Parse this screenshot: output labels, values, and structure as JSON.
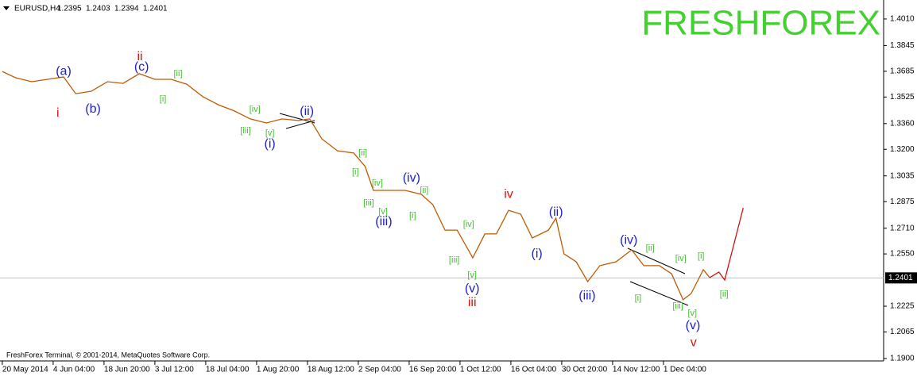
{
  "chart_data": {
    "type": "line",
    "symbol": "EURUSD,H4",
    "ohlc": [
      1.2395,
      1.2403,
      1.2394,
      1.2401
    ],
    "watermark": "FRESHFOREX",
    "copyright": "FreshForex Terminal, © 2001-2014, MetaQuotes Software Corp.",
    "last_price": 1.2401,
    "xlim": [
      -4,
      1525
    ],
    "ylim": [
      1.1885,
      1.4128
    ],
    "xticks": [
      {
        "value": 0,
        "label": "20 May 2014"
      },
      {
        "value": 88,
        "label": "4 Jun 04:00"
      },
      {
        "value": 176,
        "label": "18 Jun 20:00"
      },
      {
        "value": 264,
        "label": "3 Jul 12:00"
      },
      {
        "value": 352,
        "label": "18 Jul 04:00"
      },
      {
        "value": 440,
        "label": "1 Aug 20:00"
      },
      {
        "value": 528,
        "label": "18 Aug 12:00"
      },
      {
        "value": 616,
        "label": "2 Sep 04:00"
      },
      {
        "value": 704,
        "label": "16 Sep 20:00"
      },
      {
        "value": 792,
        "label": "1 Oct 12:00"
      },
      {
        "value": 880,
        "label": "16 Oct 04:00"
      },
      {
        "value": 968,
        "label": "30 Oct 20:00"
      },
      {
        "value": 1056,
        "label": "14 Nov 12:00"
      },
      {
        "value": 1144,
        "label": "1 Dec 04:00"
      }
    ],
    "yticks": [
      {
        "value": 1.401,
        "label": "1.4010"
      },
      1.3845,
      1.3685,
      1.3525,
      {
        "value": 1.336,
        "label": "1.3360"
      },
      {
        "value": 1.32,
        "label": "1.3200"
      },
      1.3035,
      1.2875,
      {
        "value": 1.271,
        "label": "1.2710"
      },
      {
        "value": 1.255,
        "label": "1.2550"
      },
      1.2225,
      1.2065,
      {
        "value": 1.19,
        "label": "1.1900"
      }
    ],
    "series": [
      {
        "color": "#c05a00",
        "x": [
          0,
          23,
          51,
          78,
          106,
          127,
          154,
          182,
          209,
          237,
          264,
          292,
          319,
          347,
          374,
          402,
          429,
          457,
          484,
          512,
          532,
          553,
          580,
          608,
          628,
          642,
          670,
          697,
          725,
          745,
          766,
          787,
          814,
          835,
          855,
          876,
          897,
          917,
          945,
          958,
          972,
          993,
          1013,
          1034,
          1062,
          1089,
          1110,
          1137,
          1158,
          1178,
          1192,
          1213,
          1224
        ],
        "values": [
          1.3684,
          1.3645,
          1.362,
          1.3635,
          1.365,
          1.3546,
          1.3561,
          1.362,
          1.361,
          1.367,
          1.3635,
          1.3635,
          1.3605,
          1.3527,
          1.3477,
          1.3438,
          1.3389,
          1.3364,
          1.3389,
          1.3379,
          1.3389,
          1.3265,
          1.3191,
          1.3177,
          1.3093,
          1.2945,
          1.2945,
          1.2945,
          1.292,
          1.2856,
          1.2698,
          1.2698,
          1.2526,
          1.2674,
          1.2674,
          1.2821,
          1.2797,
          1.2649,
          1.2698,
          1.2772,
          1.255,
          1.2501,
          1.2378,
          1.2477,
          1.2501,
          1.2575,
          1.2477,
          1.2477,
          1.2427,
          1.2265,
          1.2304,
          1.2452,
          1.2403
        ]
      },
      {
        "color": "#d01010",
        "x": [
          1224,
          1240,
          1250,
          1282
        ],
        "values": [
          1.2403,
          1.2437,
          1.2388,
          1.2836
        ]
      }
    ],
    "annotations": [
      {
        "text": "(a)",
        "x": 106,
        "y": 1.3684,
        "color": "#2020c8"
      },
      {
        "text": "(b)",
        "x": 157,
        "y": 1.3448,
        "color": "#2020c8"
      },
      {
        "text": "(c)",
        "x": 241,
        "y": 1.3709,
        "color": "#2020c8"
      },
      {
        "text": "ii",
        "x": 238,
        "y": 1.3773,
        "color": "#e01010"
      },
      {
        "text": "i",
        "x": 96,
        "y": 1.3423,
        "color": "#e01010"
      },
      {
        "text": "[i]",
        "x": 278,
        "y": 1.3512,
        "color": "#44c030"
      },
      {
        "text": "[ii]",
        "x": 304,
        "y": 1.367,
        "color": "#44c030"
      },
      {
        "text": "[iii]",
        "x": 421,
        "y": 1.3315,
        "color": "#44c030"
      },
      {
        "text": "[iv]",
        "x": 437,
        "y": 1.3448,
        "color": "#44c030"
      },
      {
        "text": "[v]",
        "x": 463,
        "y": 1.33,
        "color": "#44c030"
      },
      {
        "text": "(i)",
        "x": 463,
        "y": 1.3231,
        "color": "#2020c8"
      },
      {
        "text": "(ii)",
        "x": 527,
        "y": 1.3433,
        "color": "#2020c8"
      },
      {
        "text": "[i]",
        "x": 611,
        "y": 1.3058,
        "color": "#44c030"
      },
      {
        "text": "[ii]",
        "x": 624,
        "y": 1.3177,
        "color": "#44c030"
      },
      {
        "text": "[iii]",
        "x": 634,
        "y": 1.2866,
        "color": "#44c030"
      },
      {
        "text": "[iv]",
        "x": 649,
        "y": 1.2989,
        "color": "#44c030"
      },
      {
        "text": "[v]",
        "x": 659,
        "y": 1.2812,
        "color": "#44c030"
      },
      {
        "text": "(iii)",
        "x": 660,
        "y": 1.2748,
        "color": "#2020c8"
      },
      {
        "text": "(iv)",
        "x": 708,
        "y": 1.3019,
        "color": "#2020c8"
      },
      {
        "text": "[i]",
        "x": 710,
        "y": 1.2787,
        "color": "#44c030"
      },
      {
        "text": "[ii]",
        "x": 730,
        "y": 1.2945,
        "color": "#44c030"
      },
      {
        "text": "[iii]",
        "x": 782,
        "y": 1.2511,
        "color": "#44c030"
      },
      {
        "text": "[iv]",
        "x": 807,
        "y": 1.2733,
        "color": "#44c030"
      },
      {
        "text": "[v]",
        "x": 813,
        "y": 1.2417,
        "color": "#44c030"
      },
      {
        "text": "(v)",
        "x": 813,
        "y": 1.2333,
        "color": "#2020c8"
      },
      {
        "text": "iii",
        "x": 813,
        "y": 1.2245,
        "color": "#e01010"
      },
      {
        "text": "iv",
        "x": 876,
        "y": 1.292,
        "color": "#e01010"
      },
      {
        "text": "(i)",
        "x": 925,
        "y": 1.255,
        "color": "#2020c8"
      },
      {
        "text": "(ii)",
        "x": 958,
        "y": 1.2807,
        "color": "#2020c8"
      },
      {
        "text": "(iii)",
        "x": 1012,
        "y": 1.2289,
        "color": "#2020c8"
      },
      {
        "text": "(iv)",
        "x": 1084,
        "y": 1.2634,
        "color": "#2020c8"
      },
      {
        "text": "[ii]",
        "x": 1121,
        "y": 1.2585,
        "color": "#44c030"
      },
      {
        "text": "[i]",
        "x": 1100,
        "y": 1.2274,
        "color": "#44c030"
      },
      {
        "text": "[iii]",
        "x": 1169,
        "y": 1.2225,
        "color": "#44c030"
      },
      {
        "text": "[iv]",
        "x": 1174,
        "y": 1.2521,
        "color": "#44c030"
      },
      {
        "text": "[v]",
        "x": 1194,
        "y": 1.2181,
        "color": "#44c030"
      },
      {
        "text": "[i]",
        "x": 1209,
        "y": 1.2536,
        "color": "#44c030"
      },
      {
        "text": "[ii]",
        "x": 1249,
        "y": 1.2299,
        "color": "#44c030"
      },
      {
        "text": "(v)",
        "x": 1195,
        "y": 1.2102,
        "color": "#2020c8"
      },
      {
        "text": "v",
        "x": 1196,
        "y": 1.1998,
        "color": "#e01010"
      }
    ]
  }
}
